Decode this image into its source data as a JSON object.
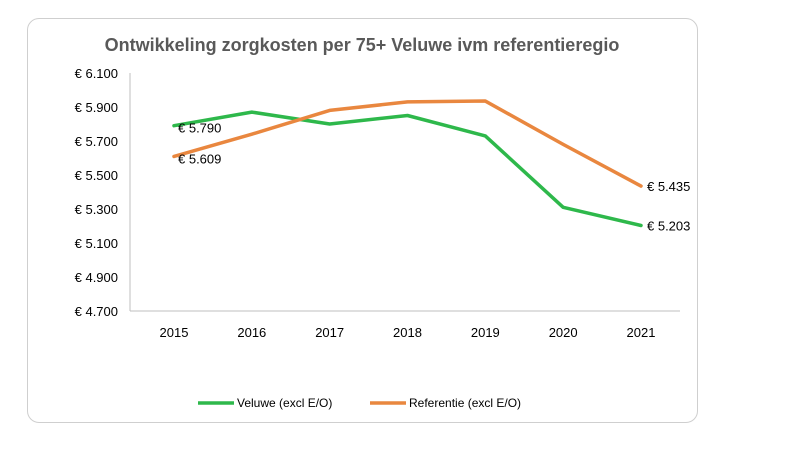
{
  "chart_data": {
    "type": "line",
    "title": "Ontwikkeling zorgkosten per 75+ Veluwe ivm referentieregio",
    "categories": [
      "2015",
      "2016",
      "2017",
      "2018",
      "2019",
      "2020",
      "2021"
    ],
    "ylim": [
      4700,
      6100
    ],
    "yticks": [
      4700,
      4900,
      5100,
      5300,
      5500,
      5700,
      5900,
      6100
    ],
    "ytick_labels": [
      "€ 4.700",
      "€ 4.900",
      "€ 5.100",
      "€ 5.300",
      "€ 5.500",
      "€ 5.700",
      "€ 5.900",
      "€ 6.100"
    ],
    "grid": false,
    "legend_position": "bottom",
    "series": [
      {
        "name": "Veluwe (excl E/O)",
        "color": "#2EB84B",
        "values": [
          5790,
          5870,
          5800,
          5850,
          5730,
          5310,
          5203
        ],
        "data_labels": {
          "0": "€ 5.790",
          "6": "€ 5.203"
        }
      },
      {
        "name": "Referentie (excl E/O)",
        "color": "#E9873F",
        "values": [
          5609,
          5740,
          5880,
          5930,
          5935,
          5680,
          5435
        ],
        "data_labels": {
          "0": "€ 5.609",
          "6": "€ 5.435"
        }
      }
    ]
  }
}
